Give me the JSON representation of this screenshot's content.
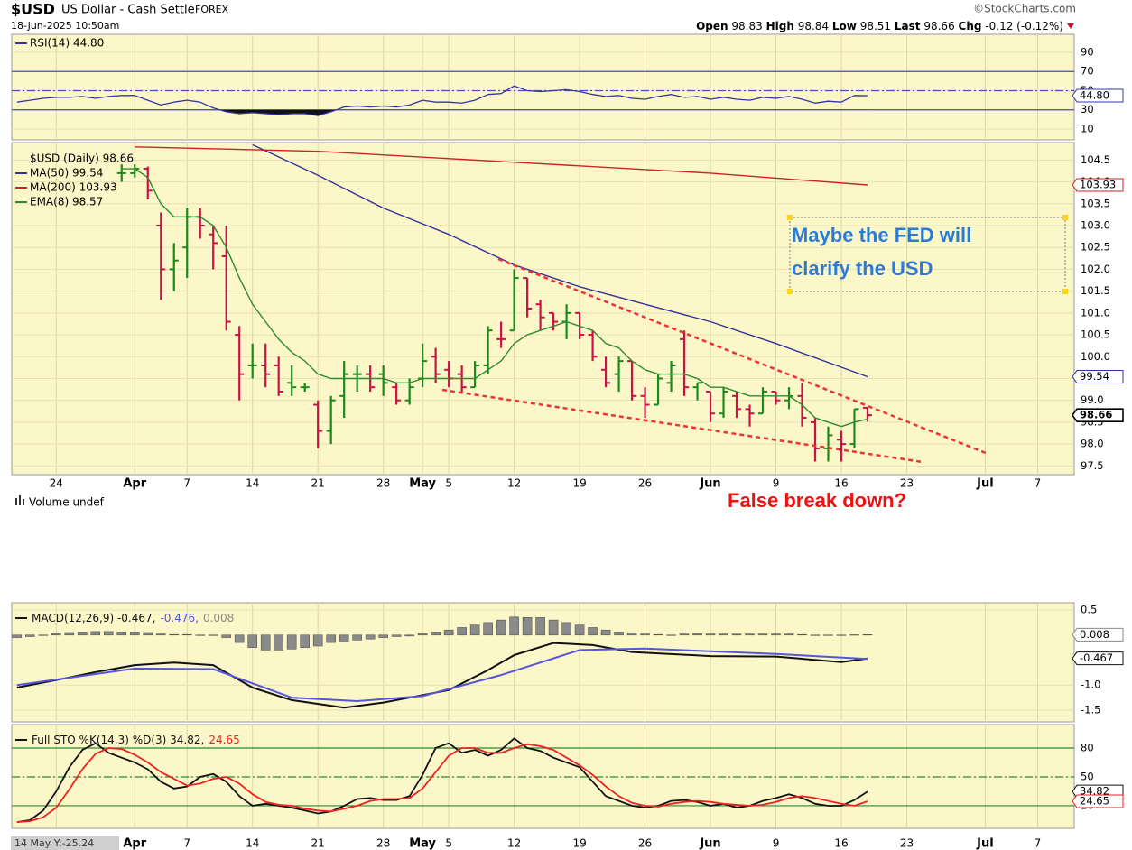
{
  "header": {
    "symbol": "$USD",
    "name": "US Dollar - Cash Settle",
    "exchange": "FOREX",
    "date": "18-Jun-2025 10:50am",
    "source": "©StockCharts.com",
    "open_label": "Open",
    "open": 98.83,
    "high_label": "High",
    "high": 98.84,
    "low_label": "Low",
    "low": 98.51,
    "last_label": "Last",
    "last": 98.66,
    "chg_label": "Chg",
    "chg": "-0.12 (-0.12%)",
    "cursor": "14 May Y:-25.24"
  },
  "chart_data": [
    {
      "type": "line",
      "legend": "stacked",
      "grid": true,
      "x": [
        -3,
        -2,
        -1,
        0,
        1,
        2,
        3,
        4,
        5,
        6,
        7,
        8,
        9,
        10,
        11,
        12,
        13,
        14,
        15,
        16,
        17,
        18,
        19,
        20,
        21,
        22,
        23,
        24,
        25,
        26,
        27,
        28,
        29,
        30,
        31,
        32,
        33,
        34,
        35,
        36,
        37,
        38,
        39,
        40,
        41,
        42,
        43,
        44,
        45,
        46,
        47,
        48,
        49,
        50,
        51,
        52,
        53,
        54,
        55,
        56,
        57,
        58,
        59,
        60,
        61,
        62
      ],
      "xlim": [
        -3.4,
        77.8
      ],
      "ylim": [
        -1.3,
        108.8
      ],
      "yticks": [
        90,
        70,
        50,
        30,
        10
      ],
      "reference_lines": [
        {
          "value": 70,
          "style": "solid"
        },
        {
          "value": 50,
          "style": "dashdot"
        },
        {
          "value": 30,
          "style": "solid"
        }
      ],
      "reference_color": "#4a4ab8",
      "fill_below": 30,
      "series": [
        {
          "name": "RSI(14) 44.80",
          "color": "#3535a8",
          "last_label": "44.80",
          "values": [
            38,
            40,
            42,
            43,
            43,
            44,
            42,
            44,
            45,
            45,
            40,
            35,
            38,
            40,
            38,
            32,
            28,
            26,
            27,
            26,
            25,
            26,
            26,
            24,
            28,
            33,
            34,
            33,
            34,
            33,
            35,
            40,
            38,
            38,
            37,
            40,
            46,
            47,
            55,
            50,
            49,
            50,
            51,
            49,
            46,
            44,
            45,
            42,
            41,
            44,
            46,
            43,
            44,
            41,
            43,
            41,
            40,
            43,
            42,
            44,
            41,
            37,
            39,
            38,
            45,
            44.8
          ]
        }
      ]
    },
    {
      "type": "ohlc",
      "legend": "stacked",
      "grid": true,
      "name": "$USD (Daily) 98.66",
      "last_label": "98.66",
      "up_color": "#1b8a1b",
      "down_color": "#cc1144",
      "xlim": [
        -3.4,
        77.8
      ],
      "ylim": [
        97.3,
        104.9
      ],
      "xticks": [
        {
          "value": 0,
          "label": "24"
        },
        {
          "value": 6,
          "label": "Apr"
        },
        {
          "value": 10,
          "label": "7"
        },
        {
          "value": 15,
          "label": "14"
        },
        {
          "value": 20,
          "label": "21"
        },
        {
          "value": 25,
          "label": "28"
        },
        {
          "value": 28,
          "label": "May"
        },
        {
          "value": 30,
          "label": "5"
        },
        {
          "value": 35,
          "label": "12"
        },
        {
          "value": 40,
          "label": "19"
        },
        {
          "value": 45,
          "label": "26"
        },
        {
          "value": 50,
          "label": "Jun"
        },
        {
          "value": 55,
          "label": "9"
        },
        {
          "value": 60,
          "label": "16"
        },
        {
          "value": 65,
          "label": "23"
        },
        {
          "value": 71,
          "label": "Jul"
        },
        {
          "value": 75,
          "label": "7"
        }
      ],
      "yticks": [
        104.5,
        {
          "value": 104,
          "label": "104.0"
        },
        103.5,
        {
          "value": 103,
          "label": "103.0"
        },
        102.5,
        {
          "value": 102,
          "label": "102.0"
        },
        101.5,
        {
          "value": 101,
          "label": "101.0"
        },
        100.5,
        {
          "value": 100,
          "label": "100.0"
        },
        99.5,
        {
          "value": 99,
          "label": "99.0"
        },
        98.5,
        {
          "value": 98,
          "label": "98.0"
        },
        97.5
      ],
      "x": [
        5,
        6,
        7,
        8,
        9,
        10,
        11,
        12,
        13,
        14,
        15,
        16,
        17,
        18,
        19,
        20,
        21,
        22,
        23,
        24,
        25,
        26,
        27,
        28,
        29,
        30,
        31,
        32,
        33,
        34,
        35,
        36,
        37,
        38,
        39,
        40,
        41,
        42,
        43,
        44,
        45,
        46,
        47,
        48,
        49,
        50,
        51,
        52,
        53,
        54,
        55,
        56,
        57,
        58,
        59,
        60,
        61,
        62
      ],
      "open": [
        104.2,
        104.2,
        104.3,
        103.0,
        102.0,
        102.5,
        103.2,
        102.8,
        102.3,
        100.5,
        99.8,
        99.8,
        99.8,
        99.4,
        99.3,
        98.9,
        98.3,
        99.1,
        99.6,
        99.6,
        99.6,
        99.3,
        99.0,
        99.5,
        100.0,
        99.7,
        99.6,
        99.3,
        99.8,
        100.4,
        100.6,
        101.8,
        101.2,
        101.0,
        100.8,
        101.0,
        100.5,
        99.7,
        99.6,
        99.9,
        99.1,
        98.9,
        99.4,
        100.4,
        99.3,
        99.2,
        98.7,
        99.1,
        98.8,
        98.7,
        99.2,
        99.0,
        99.1,
        98.5,
        97.9,
        98.1,
        98.0,
        98.83
      ],
      "high": [
        104.4,
        104.4,
        104.35,
        103.3,
        102.6,
        103.4,
        103.4,
        103.0,
        103.0,
        100.7,
        100.3,
        100.3,
        100.0,
        99.8,
        99.4,
        99.0,
        99.1,
        99.9,
        99.8,
        99.8,
        99.8,
        99.4,
        99.5,
        100.3,
        100.2,
        99.9,
        99.8,
        99.9,
        100.7,
        100.8,
        102.0,
        101.8,
        101.3,
        101.0,
        101.2,
        101.0,
        100.6,
        100.0,
        100.0,
        99.9,
        99.3,
        99.6,
        99.9,
        100.6,
        99.4,
        99.2,
        99.3,
        99.2,
        98.9,
        99.3,
        99.2,
        99.3,
        99.4,
        98.6,
        98.4,
        98.3,
        98.8,
        98.84
      ],
      "low": [
        104.0,
        104.1,
        103.6,
        101.3,
        101.5,
        101.8,
        102.7,
        102.0,
        100.6,
        99.0,
        99.5,
        99.3,
        99.1,
        99.1,
        99.2,
        97.9,
        98.0,
        98.6,
        99.2,
        99.2,
        99.1,
        98.9,
        98.9,
        99.3,
        99.4,
        99.3,
        99.2,
        99.3,
        99.6,
        100.2,
        100.6,
        100.9,
        100.6,
        100.6,
        100.4,
        100.4,
        99.9,
        99.3,
        99.2,
        99.0,
        98.6,
        98.9,
        99.2,
        99.1,
        99.0,
        98.5,
        98.6,
        98.6,
        98.4,
        98.7,
        98.9,
        98.8,
        98.4,
        97.6,
        97.6,
        97.6,
        97.9,
        98.51
      ],
      "close": [
        104.2,
        104.3,
        103.8,
        102.0,
        102.2,
        103.2,
        103.0,
        102.6,
        100.8,
        99.6,
        99.8,
        99.6,
        99.2,
        99.3,
        99.3,
        98.3,
        99.0,
        99.6,
        99.6,
        99.3,
        99.4,
        99.0,
        99.3,
        99.9,
        99.6,
        99.5,
        99.3,
        99.8,
        100.6,
        100.4,
        101.8,
        101.1,
        100.9,
        100.8,
        101.0,
        100.5,
        100.0,
        99.4,
        99.9,
        99.1,
        98.9,
        99.5,
        99.8,
        99.3,
        99.4,
        98.7,
        99.2,
        98.8,
        98.7,
        99.2,
        99.0,
        99.1,
        98.6,
        97.9,
        98.2,
        98.0,
        98.8,
        98.66
      ],
      "series": [
        {
          "name": "MA(50) 99.54",
          "color": "#333399",
          "last_label": "99.54",
          "x": [
            15,
            20,
            25,
            30,
            35,
            40,
            45,
            50,
            55,
            62
          ],
          "values": [
            104.85,
            104.15,
            103.4,
            102.8,
            102.1,
            101.6,
            101.2,
            100.8,
            100.3,
            99.54
          ]
        },
        {
          "name": "MA(200) 103.93",
          "color": "#cc2222",
          "last_label": "103.93",
          "x": [
            6,
            20,
            35,
            50,
            62
          ],
          "values": [
            104.8,
            104.7,
            104.45,
            104.2,
            103.93
          ]
        },
        {
          "name": "EMA(8) 98.57",
          "color": "#2e8b2e",
          "values": [
            104.3,
            104.3,
            104.1,
            103.5,
            103.2,
            103.2,
            103.2,
            103.0,
            102.5,
            101.8,
            101.2,
            100.8,
            100.4,
            100.1,
            99.9,
            99.6,
            99.5,
            99.5,
            99.5,
            99.5,
            99.5,
            99.4,
            99.4,
            99.5,
            99.5,
            99.5,
            99.5,
            99.5,
            99.7,
            99.9,
            100.3,
            100.5,
            100.6,
            100.7,
            100.8,
            100.7,
            100.6,
            100.3,
            100.2,
            99.9,
            99.7,
            99.6,
            99.6,
            99.6,
            99.5,
            99.3,
            99.3,
            99.2,
            99.1,
            99.1,
            99.1,
            99.1,
            98.9,
            98.6,
            98.5,
            98.4,
            98.5,
            98.57
          ]
        }
      ],
      "annotations": [
        {
          "lines": [
            "Maybe the FED will",
            "clarify the USD"
          ]
        },
        {
          "lines": [
            "False break down?"
          ]
        }
      ]
    },
    {
      "type": "macd",
      "legend": "inline",
      "grid": true,
      "volume_title": "Volume undef",
      "x": [
        -3,
        -2,
        -1,
        0,
        1,
        2,
        3,
        4,
        5,
        6,
        7,
        8,
        9,
        10,
        11,
        12,
        13,
        14,
        15,
        16,
        17,
        18,
        19,
        20,
        21,
        22,
        23,
        24,
        25,
        26,
        27,
        28,
        29,
        30,
        31,
        32,
        33,
        34,
        35,
        36,
        37,
        38,
        39,
        40,
        41,
        42,
        43,
        44,
        45,
        46,
        47,
        48,
        49,
        50,
        51,
        52,
        53,
        54,
        55,
        56,
        57,
        58,
        59,
        60,
        61,
        62
      ],
      "xlim": [
        -3.4,
        77.8
      ],
      "ylim": [
        -1.735,
        0.645
      ],
      "yticks": [
        0.5,
        {
          "value": -1,
          "label": "-1.0"
        },
        -1.5
      ],
      "series": [
        {
          "name": "MACD(12,26,9) -0.467,",
          "color": "#111111",
          "last_label": "-0.467",
          "x": [
            -3,
            0,
            3,
            6,
            9,
            12,
            15,
            18,
            22,
            25,
            28,
            30,
            33,
            35,
            38,
            41,
            44,
            50,
            55,
            60,
            62
          ],
          "values": [
            -1.05,
            -0.9,
            -0.74,
            -0.6,
            -0.55,
            -0.6,
            -1.05,
            -1.3,
            -1.45,
            -1.35,
            -1.2,
            -1.1,
            -0.7,
            -0.4,
            -0.16,
            -0.2,
            -0.34,
            -0.42,
            -0.43,
            -0.54,
            -0.467
          ]
        },
        {
          "name": "-0.476,",
          "color": "#5555dd",
          "x": [
            -3,
            6,
            12,
            18,
            23,
            28,
            34,
            40,
            45,
            55,
            62
          ],
          "values": [
            -1.0,
            -0.67,
            -0.68,
            -1.25,
            -1.32,
            -1.22,
            -0.8,
            -0.3,
            -0.27,
            -0.38,
            -0.476
          ]
        },
        {
          "name": "0.008",
          "color": "#8a8a8a",
          "kind": "bar",
          "last_label": "0.008",
          "values": [
            -0.05,
            -0.03,
            0.0,
            0.03,
            0.05,
            0.06,
            0.07,
            0.07,
            0.06,
            0.06,
            0.05,
            0.02,
            0.01,
            0.01,
            0.0,
            0.0,
            -0.05,
            -0.15,
            -0.25,
            -0.3,
            -0.3,
            -0.28,
            -0.25,
            -0.22,
            -0.15,
            -0.12,
            -0.1,
            -0.08,
            -0.05,
            -0.03,
            -0.02,
            0.03,
            0.06,
            0.1,
            0.15,
            0.2,
            0.25,
            0.3,
            0.36,
            0.35,
            0.35,
            0.3,
            0.25,
            0.2,
            0.15,
            0.1,
            0.06,
            0.04,
            0.02,
            0.01,
            0.0,
            0.02,
            0.03,
            0.02,
            0.02,
            0.02,
            0.02,
            0.02,
            0.02,
            0.02,
            0.01,
            0.0,
            0.0,
            0.0,
            0.005,
            0.008
          ]
        }
      ]
    },
    {
      "type": "line",
      "legend": "inline",
      "grid": true,
      "x": [
        -3,
        -2,
        -1,
        0,
        1,
        2,
        3,
        4,
        5,
        6,
        7,
        8,
        9,
        10,
        11,
        12,
        13,
        14,
        15,
        16,
        17,
        18,
        19,
        20,
        21,
        22,
        23,
        24,
        25,
        26,
        27,
        28,
        29,
        30,
        31,
        32,
        33,
        34,
        35,
        36,
        37,
        38,
        39,
        40,
        41,
        42,
        43,
        44,
        45,
        46,
        47,
        48,
        49,
        50,
        51,
        52,
        53,
        54,
        55,
        56,
        57,
        58,
        59,
        60,
        61,
        62
      ],
      "xlim": [
        -3.4,
        77.8
      ],
      "ylim": [
        -3.5,
        104.4
      ],
      "yticks": [
        80,
        50,
        20
      ],
      "reference_lines": [
        {
          "value": 80,
          "style": "solid"
        },
        {
          "value": 50,
          "style": "dashdot"
        },
        {
          "value": 20,
          "style": "solid"
        }
      ],
      "reference_color": "#2b8a2b",
      "series": [
        {
          "name": "Full STO %K(14,3) %D(3) 34.82,",
          "color": "#111111",
          "last_label": "34.82",
          "values": [
            3,
            5,
            15,
            35,
            60,
            78,
            85,
            75,
            70,
            65,
            58,
            45,
            38,
            40,
            50,
            53,
            45,
            30,
            20,
            22,
            20,
            18,
            15,
            12,
            14,
            20,
            27,
            28,
            26,
            26,
            30,
            52,
            80,
            85,
            75,
            78,
            72,
            78,
            90,
            80,
            77,
            70,
            65,
            60,
            45,
            30,
            25,
            20,
            18,
            20,
            25,
            26,
            24,
            20,
            22,
            18,
            20,
            25,
            28,
            32,
            28,
            22,
            20,
            20,
            26,
            34.82
          ]
        },
        {
          "name": "24.65",
          "color": "#ee2222",
          "last_label": "24.65",
          "values": [
            3,
            4,
            8,
            18,
            37,
            58,
            74,
            80,
            79,
            73,
            65,
            55,
            48,
            41,
            43,
            48,
            50,
            43,
            32,
            24,
            21,
            20,
            17,
            15,
            14,
            17,
            20,
            25,
            27,
            27,
            28,
            38,
            55,
            72,
            80,
            80,
            75,
            75,
            80,
            84,
            82,
            78,
            70,
            62,
            52,
            40,
            30,
            23,
            20,
            19,
            22,
            24,
            25,
            24,
            22,
            21,
            20,
            21,
            24,
            28,
            30,
            28,
            25,
            22,
            20,
            24.65
          ]
        }
      ]
    }
  ]
}
